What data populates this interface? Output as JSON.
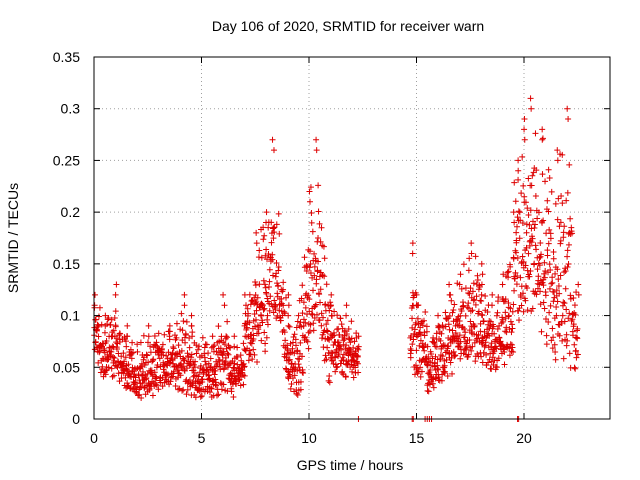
{
  "chart_data": {
    "type": "scatter",
    "title": "Day 106 of 2020, SRMTID for receiver warn",
    "xlabel": "GPS time / hours",
    "ylabel": "SRMTID / TECUs",
    "xlim": [
      0,
      24
    ],
    "ylim": [
      0,
      0.35
    ],
    "xticks": [
      0,
      5,
      10,
      15,
      20
    ],
    "yticks": [
      0,
      0.05,
      0.1,
      0.15,
      0.2,
      0.25,
      0.3,
      0.35
    ],
    "xtick_labels": [
      "0",
      "5",
      "10",
      "15",
      "20"
    ],
    "ytick_labels": [
      "0",
      "0.05",
      "0.1",
      "0.15",
      "0.2",
      "0.25",
      "0.3",
      "0.35"
    ],
    "grid": true,
    "marker": "+",
    "color": "#dd0000",
    "series": [
      {
        "name": "SRMTID",
        "segments": [
          {
            "x_range": [
              0.0,
              1.5
            ],
            "envelope": [
              [
                0.0,
                0.06,
                0.12
              ],
              [
                0.5,
                0.03,
                0.1
              ],
              [
                1.0,
                0.04,
                0.13
              ],
              [
                1.5,
                0.02,
                0.09
              ]
            ]
          },
          {
            "x_range": [
              1.5,
              4.5
            ],
            "envelope": [
              [
                1.5,
                0.02,
                0.08
              ],
              [
                2.5,
                0.02,
                0.09
              ],
              [
                3.5,
                0.03,
                0.09
              ],
              [
                4.2,
                0.02,
                0.12
              ],
              [
                4.5,
                0.03,
                0.1
              ]
            ]
          },
          {
            "x_range": [
              4.5,
              7.0
            ],
            "envelope": [
              [
                4.5,
                0.02,
                0.09
              ],
              [
                5.5,
                0.02,
                0.08
              ],
              [
                6.0,
                0.02,
                0.12
              ],
              [
                6.5,
                0.02,
                0.08
              ],
              [
                7.0,
                0.03,
                0.09
              ]
            ]
          },
          {
            "x_range": [
              7.0,
              9.0
            ],
            "envelope": [
              [
                7.0,
                0.04,
                0.12
              ],
              [
                7.5,
                0.05,
                0.18
              ],
              [
                8.0,
                0.06,
                0.2
              ],
              [
                8.3,
                0.08,
                0.27
              ],
              [
                9.0,
                0.04,
                0.12
              ]
            ]
          },
          {
            "x_range": [
              9.0,
              11.0
            ],
            "envelope": [
              [
                9.0,
                0.03,
                0.1
              ],
              [
                9.5,
                0.02,
                0.1
              ],
              [
                10.0,
                0.05,
                0.22
              ],
              [
                10.3,
                0.08,
                0.27
              ],
              [
                11.0,
                0.03,
                0.12
              ]
            ]
          },
          {
            "x_range": [
              11.0,
              12.3
            ],
            "envelope": [
              [
                11.0,
                0.04,
                0.11
              ],
              [
                11.7,
                0.04,
                0.11
              ],
              [
                12.3,
                0.04,
                0.08
              ]
            ]
          },
          {
            "x_range": [
              14.7,
              15.5
            ],
            "envelope": [
              [
                14.8,
                0.03,
                0.17
              ],
              [
                15.0,
                0.04,
                0.12
              ]
            ]
          },
          {
            "x_range": [
              15.5,
              18.0
            ],
            "envelope": [
              [
                15.5,
                0.02,
                0.07
              ],
              [
                16.0,
                0.03,
                0.1
              ],
              [
                16.5,
                0.04,
                0.13
              ],
              [
                17.0,
                0.05,
                0.14
              ],
              [
                17.5,
                0.05,
                0.17
              ],
              [
                18.0,
                0.05,
                0.15
              ]
            ]
          },
          {
            "x_range": [
              18.0,
              19.5
            ],
            "envelope": [
              [
                18.0,
                0.04,
                0.13
              ],
              [
                18.5,
                0.04,
                0.12
              ],
              [
                19.0,
                0.05,
                0.14
              ],
              [
                19.5,
                0.06,
                0.2
              ]
            ]
          },
          {
            "x_range": [
              19.5,
              22.5
            ],
            "envelope": [
              [
                19.7,
                0.07,
                0.25
              ],
              [
                20.0,
                0.08,
                0.29
              ],
              [
                20.3,
                0.1,
                0.31
              ],
              [
                20.8,
                0.08,
                0.28
              ],
              [
                21.5,
                0.05,
                0.26
              ],
              [
                22.0,
                0.04,
                0.3
              ],
              [
                22.5,
                0.05,
                0.13
              ]
            ]
          }
        ],
        "zero_points": [
          12.3,
          14.8,
          14.85,
          15.4,
          15.5,
          15.6,
          15.7,
          19.7,
          19.75
        ]
      }
    ]
  }
}
